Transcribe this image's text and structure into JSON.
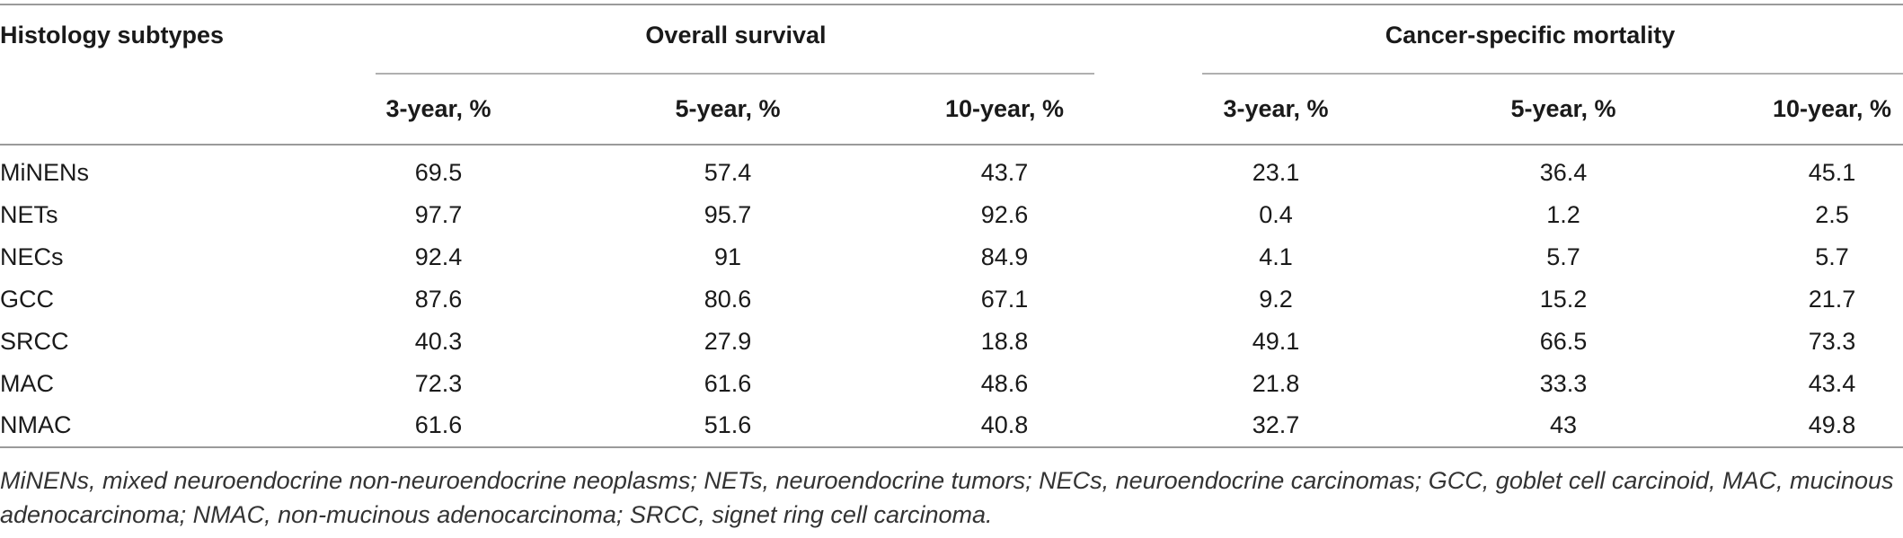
{
  "table": {
    "row_header_label": "Histology subtypes",
    "group_headers": [
      "Overall survival",
      "Cancer-specific mortality"
    ],
    "sub_headers": [
      "3-year, %",
      "5-year, %",
      "10-year, %",
      "3-year, %",
      "5-year, %",
      "10-year, %"
    ],
    "rows": [
      {
        "label": "MiNENs",
        "values": [
          "69.5",
          "57.4",
          "43.7",
          "23.1",
          "36.4",
          "45.1"
        ]
      },
      {
        "label": "NETs",
        "values": [
          "97.7",
          "95.7",
          "92.6",
          "0.4",
          "1.2",
          "2.5"
        ]
      },
      {
        "label": "NECs",
        "values": [
          "92.4",
          "91",
          "84.9",
          "4.1",
          "5.7",
          "5.7"
        ]
      },
      {
        "label": "GCC",
        "values": [
          "87.6",
          "80.6",
          "67.1",
          "9.2",
          "15.2",
          "21.7"
        ]
      },
      {
        "label": "SRCC",
        "values": [
          "40.3",
          "27.9",
          "18.8",
          "49.1",
          "66.5",
          "73.3"
        ]
      },
      {
        "label": "MAC",
        "values": [
          "72.3",
          "61.6",
          "48.6",
          "21.8",
          "33.3",
          "43.4"
        ]
      },
      {
        "label": "NMAC",
        "values": [
          "61.6",
          "51.6",
          "40.8",
          "32.7",
          "43",
          "49.8"
        ]
      }
    ]
  },
  "footnote": "MiNENs, mixed neuroendocrine non-neuroendocrine neoplasms; NETs, neuroendocrine tumors; NECs, neuroendocrine carcinomas; GCC, goblet cell carcinoid, MAC, mucinous adenocarcinoma; NMAC, non-mucinous adenocarcinoma; SRCC, signet ring cell carcinoma."
}
